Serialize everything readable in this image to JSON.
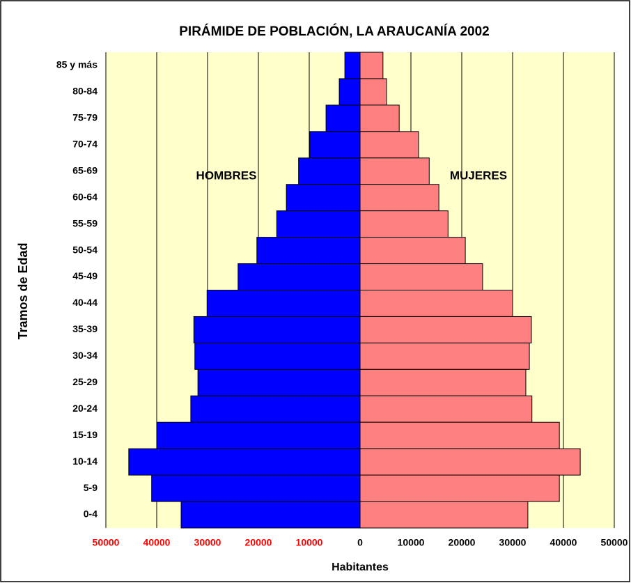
{
  "chart_data": {
    "type": "pyramid",
    "title": "PIRÁMIDE DE POBLACIÓN, LA ARAUCANÍA 2002",
    "x_label": "Habitantes",
    "y_label": "Tramos de Edad",
    "categories": [
      "85 y más",
      "80-84",
      "75-79",
      "70-74",
      "65-69",
      "60-64",
      "55-59",
      "50-54",
      "45-49",
      "40-44",
      "35-39",
      "30-34",
      "25-29",
      "20-24",
      "15-19",
      "10-14",
      "5-9",
      "0-4"
    ],
    "series": [
      {
        "name": "HOMBRES",
        "color": "#0000ff",
        "values": [
          -3000,
          -4100,
          -6700,
          -9900,
          -12100,
          -14500,
          -16400,
          -20300,
          -24000,
          -30100,
          -32700,
          -32500,
          -31900,
          -33300,
          -40000,
          -45500,
          -41000,
          -35200
        ]
      },
      {
        "name": "MUJERES",
        "color": "#ff8080",
        "values": [
          4500,
          5200,
          7700,
          11500,
          13600,
          15500,
          17300,
          20700,
          24100,
          30000,
          33700,
          33300,
          32600,
          33800,
          39200,
          43300,
          39200,
          33000
        ]
      }
    ],
    "xlim": [
      -50000,
      50000
    ],
    "xticks": [
      {
        "value": -50000,
        "label": "50000",
        "color": "#ff0000"
      },
      {
        "value": -40000,
        "label": "40000",
        "color": "#ff0000"
      },
      {
        "value": -30000,
        "label": "30000",
        "color": "#ff0000"
      },
      {
        "value": -20000,
        "label": "20000",
        "color": "#ff0000"
      },
      {
        "value": -10000,
        "label": "10000",
        "color": "#ff0000"
      },
      0,
      10000,
      20000,
      30000,
      40000,
      50000
    ],
    "grid": true,
    "plot_background": "#ffffcc"
  }
}
